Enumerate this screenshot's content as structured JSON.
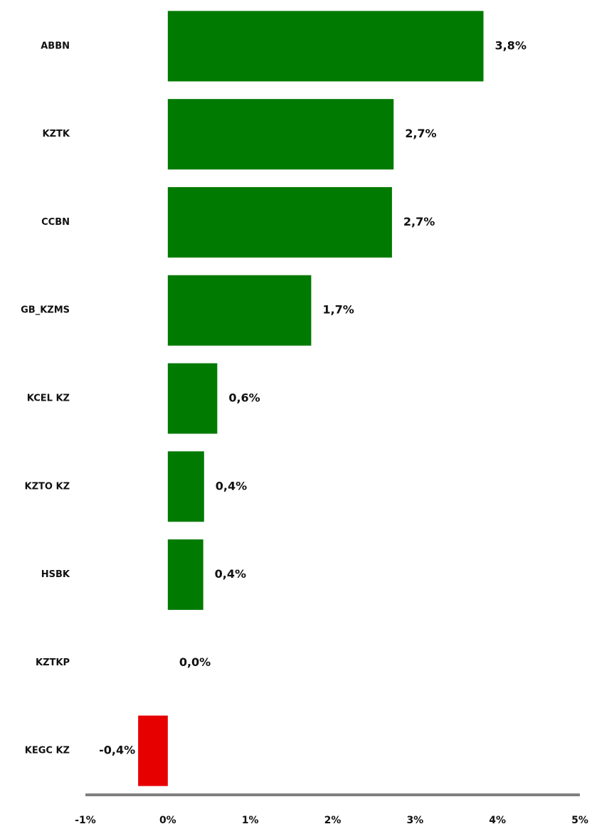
{
  "chart_data": {
    "type": "barh",
    "categories": [
      "ABBN",
      "KZTK",
      "CCBN",
      "GB_KZMS",
      "KCEL KZ",
      "KZTO KZ",
      "HSBK",
      "KZTKP",
      "KEGC KZ"
    ],
    "values": [
      3.83,
      2.74,
      2.72,
      1.74,
      0.6,
      0.44,
      0.43,
      0,
      -0.36
    ],
    "value_labels": [
      "3,8%",
      "2,7%",
      "2,7%",
      "1,7%",
      "0,6%",
      "0,4%",
      "0,4%",
      "0,0%",
      "-0,4%"
    ],
    "colors": [
      "#007a00",
      "#007a00",
      "#007a00",
      "#007a00",
      "#007a00",
      "#007a00",
      "#007a00",
      "#007a00",
      "#e60000"
    ],
    "xlim": [
      -1,
      5
    ],
    "xticks": [
      {
        "value": -1,
        "label": "-1%"
      },
      {
        "value": 0,
        "label": "0%"
      },
      {
        "value": 1,
        "label": "1%"
      },
      {
        "value": 2,
        "label": "2%"
      },
      {
        "value": 3,
        "label": "3%"
      },
      {
        "value": 4,
        "label": "4%"
      },
      {
        "value": 5,
        "label": "5%"
      }
    ],
    "grid": false
  }
}
